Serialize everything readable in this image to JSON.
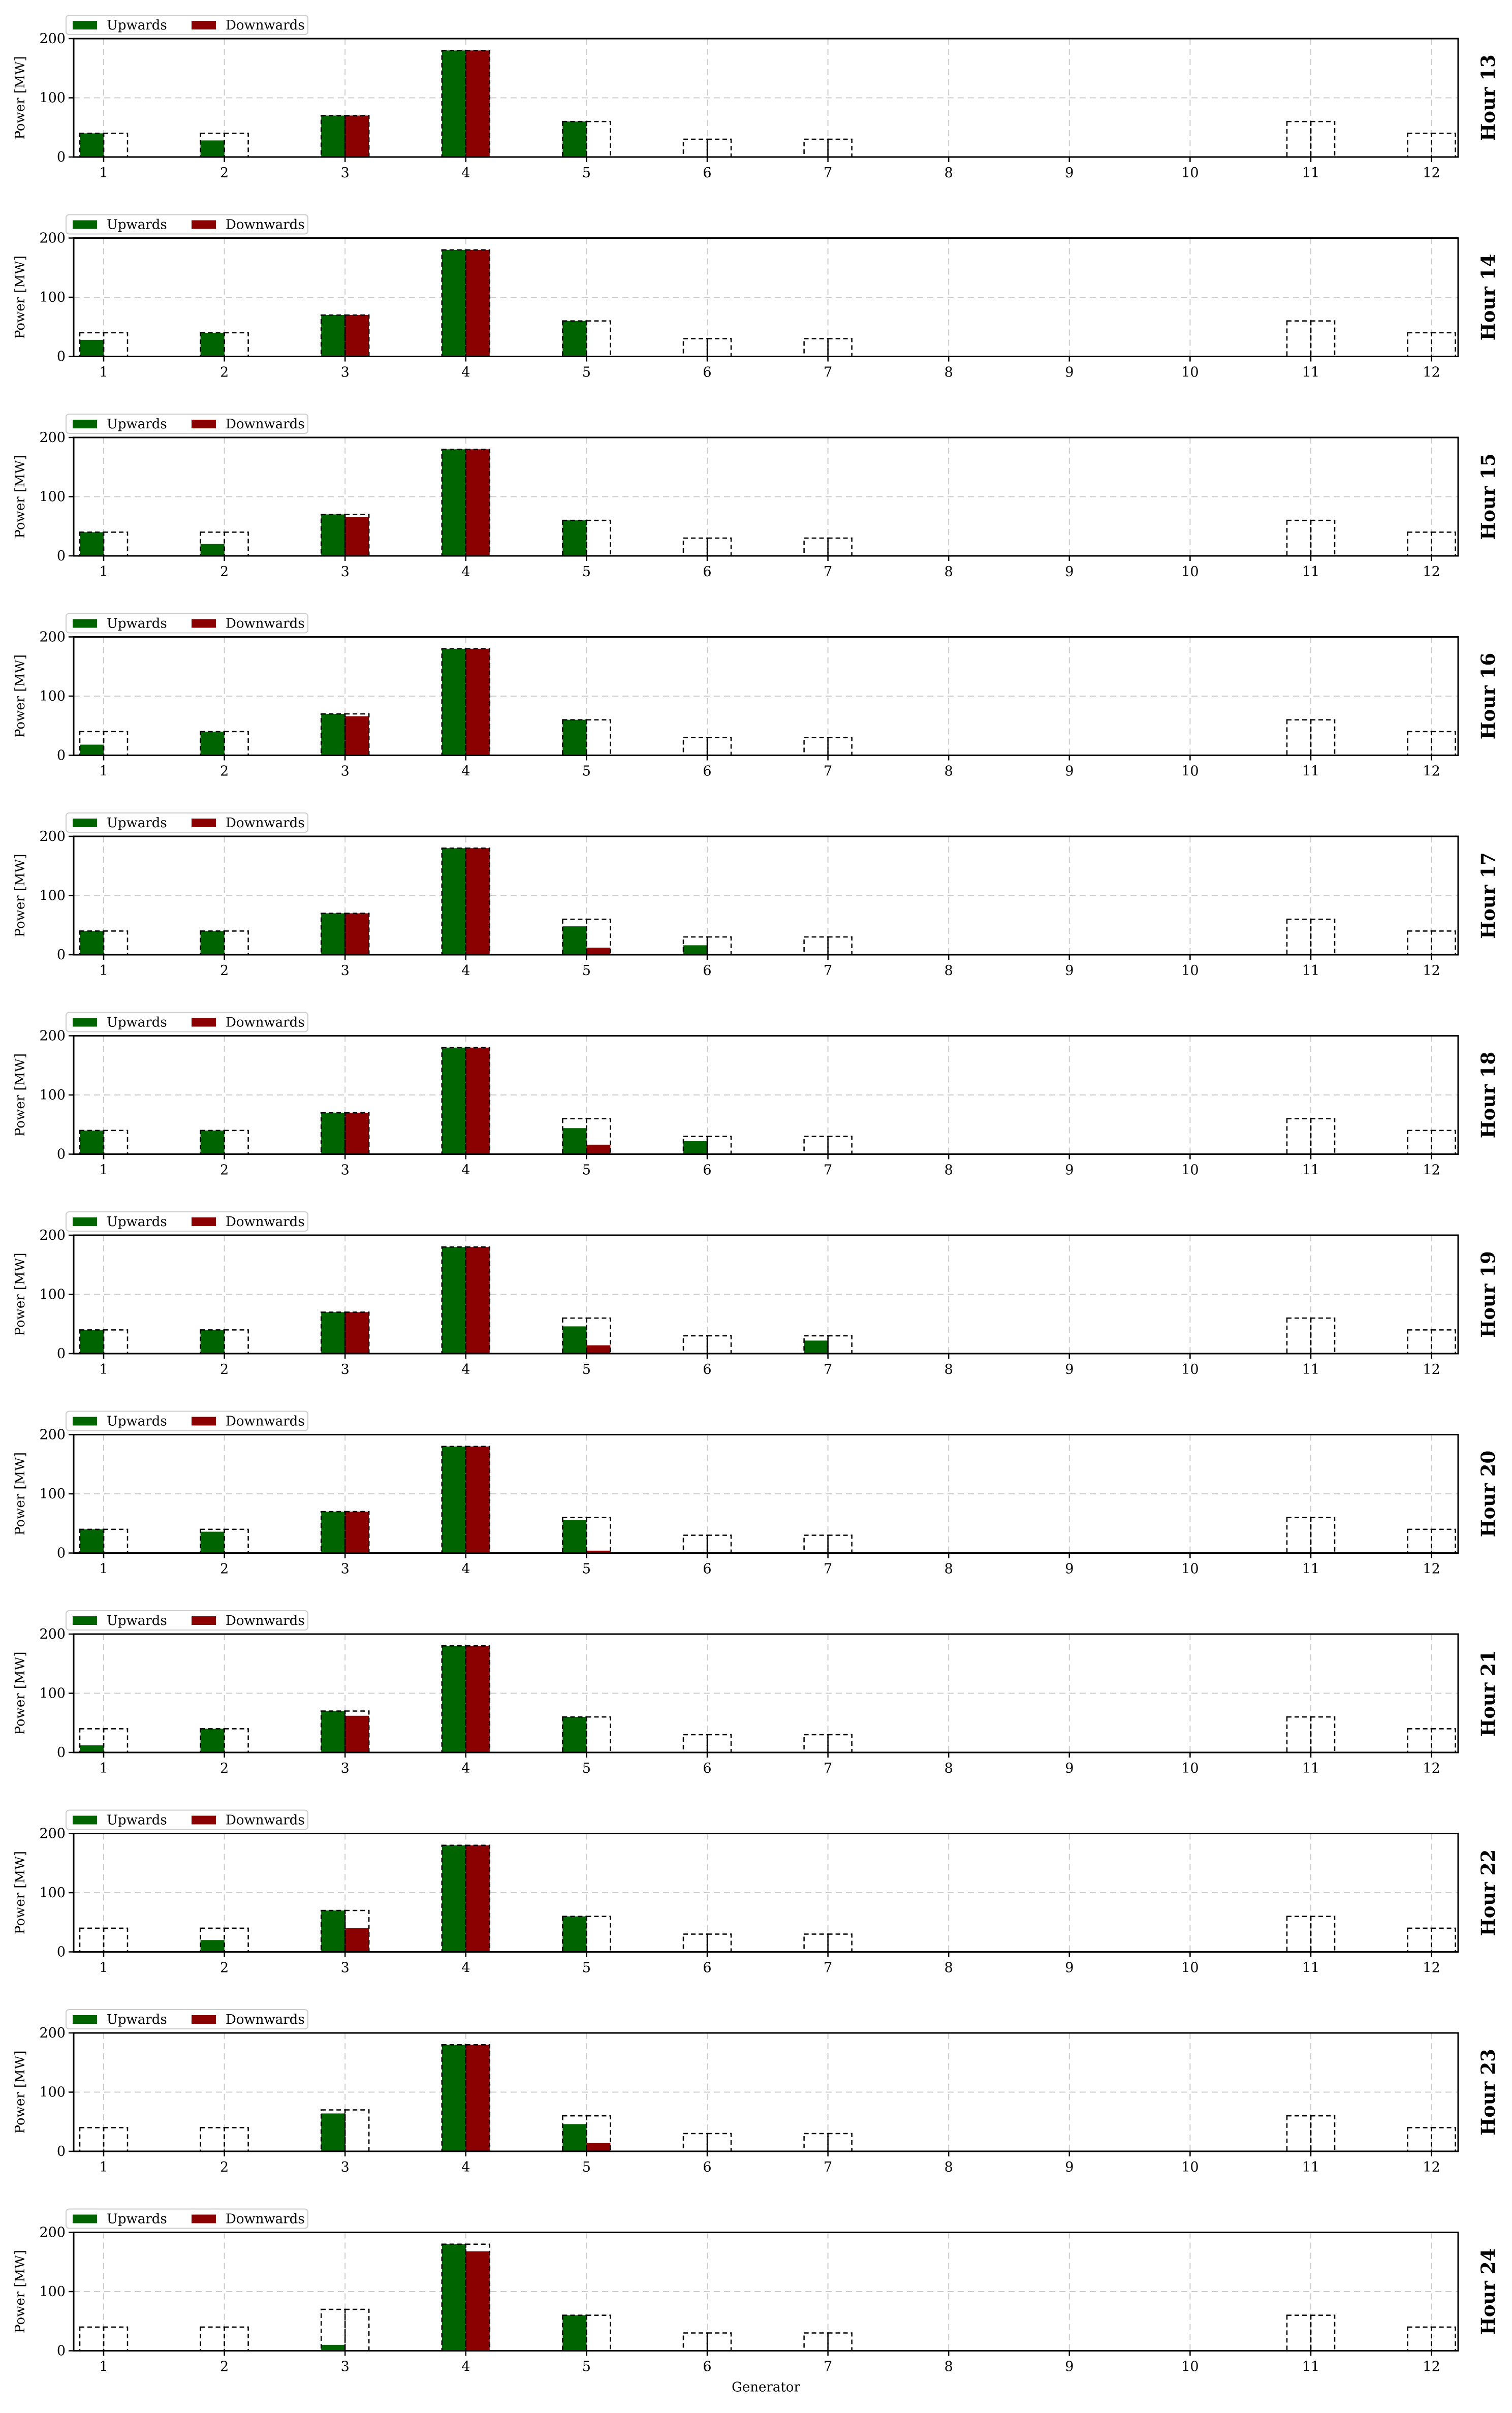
{
  "figure": {
    "xlabel": "Generator",
    "ylabel": "Power [MW]",
    "legend": {
      "items": [
        "Upwards",
        "Downwards"
      ],
      "placement": "upper-left-outside"
    },
    "colors": {
      "upwards": "#006400",
      "downwards": "#8b0000",
      "capacity_outline": "#000000",
      "grid": "#cccccc"
    }
  },
  "chart_data": [
    {
      "type": "bar",
      "title": "Hour 13",
      "xlabel": "",
      "ylabel": "Power [MW]",
      "ylim": [
        0,
        200
      ],
      "yticks": [
        0,
        100,
        200
      ],
      "grid": true,
      "categories": [
        "1",
        "2",
        "3",
        "4",
        "5",
        "6",
        "7",
        "8",
        "9",
        "10",
        "11",
        "12"
      ],
      "series": [
        {
          "name": "Upwards",
          "values": [
            40,
            28,
            70,
            180,
            60,
            0,
            0,
            0,
            0,
            0,
            0,
            0
          ]
        },
        {
          "name": "Downwards",
          "values": [
            0,
            0,
            70,
            180,
            0,
            0,
            0,
            0,
            0,
            0,
            0,
            0
          ]
        }
      ],
      "capacity": [
        40,
        40,
        70,
        180,
        60,
        30,
        30,
        0,
        0,
        0,
        60,
        40
      ]
    },
    {
      "type": "bar",
      "title": "Hour 14",
      "xlabel": "",
      "ylabel": "Power [MW]",
      "ylim": [
        0,
        200
      ],
      "yticks": [
        0,
        100,
        200
      ],
      "grid": true,
      "categories": [
        "1",
        "2",
        "3",
        "4",
        "5",
        "6",
        "7",
        "8",
        "9",
        "10",
        "11",
        "12"
      ],
      "series": [
        {
          "name": "Upwards",
          "values": [
            28,
            40,
            70,
            180,
            60,
            0,
            0,
            0,
            0,
            0,
            0,
            0
          ]
        },
        {
          "name": "Downwards",
          "values": [
            0,
            0,
            70,
            180,
            0,
            0,
            0,
            0,
            0,
            0,
            0,
            0
          ]
        }
      ],
      "capacity": [
        40,
        40,
        70,
        180,
        60,
        30,
        30,
        0,
        0,
        0,
        60,
        40
      ]
    },
    {
      "type": "bar",
      "title": "Hour 15",
      "xlabel": "",
      "ylabel": "Power [MW]",
      "ylim": [
        0,
        200
      ],
      "yticks": [
        0,
        100,
        200
      ],
      "grid": true,
      "categories": [
        "1",
        "2",
        "3",
        "4",
        "5",
        "6",
        "7",
        "8",
        "9",
        "10",
        "11",
        "12"
      ],
      "series": [
        {
          "name": "Upwards",
          "values": [
            40,
            20,
            70,
            180,
            60,
            0,
            0,
            0,
            0,
            0,
            0,
            0
          ]
        },
        {
          "name": "Downwards",
          "values": [
            0,
            0,
            66,
            180,
            0,
            0,
            0,
            0,
            0,
            0,
            0,
            0
          ]
        }
      ],
      "capacity": [
        40,
        40,
        70,
        180,
        60,
        30,
        30,
        0,
        0,
        0,
        60,
        40
      ]
    },
    {
      "type": "bar",
      "title": "Hour 16",
      "xlabel": "",
      "ylabel": "Power [MW]",
      "ylim": [
        0,
        200
      ],
      "yticks": [
        0,
        100,
        200
      ],
      "grid": true,
      "categories": [
        "1",
        "2",
        "3",
        "4",
        "5",
        "6",
        "7",
        "8",
        "9",
        "10",
        "11",
        "12"
      ],
      "series": [
        {
          "name": "Upwards",
          "values": [
            18,
            40,
            70,
            180,
            60,
            0,
            0,
            0,
            0,
            0,
            0,
            0
          ]
        },
        {
          "name": "Downwards",
          "values": [
            0,
            0,
            66,
            180,
            0,
            0,
            0,
            0,
            0,
            0,
            0,
            0
          ]
        }
      ],
      "capacity": [
        40,
        40,
        70,
        180,
        60,
        30,
        30,
        0,
        0,
        0,
        60,
        40
      ]
    },
    {
      "type": "bar",
      "title": "Hour 17",
      "xlabel": "",
      "ylabel": "Power [MW]",
      "ylim": [
        0,
        200
      ],
      "yticks": [
        0,
        100,
        200
      ],
      "grid": true,
      "categories": [
        "1",
        "2",
        "3",
        "4",
        "5",
        "6",
        "7",
        "8",
        "9",
        "10",
        "11",
        "12"
      ],
      "series": [
        {
          "name": "Upwards",
          "values": [
            40,
            40,
            70,
            180,
            48,
            16,
            0,
            0,
            0,
            0,
            0,
            0
          ]
        },
        {
          "name": "Downwards",
          "values": [
            0,
            0,
            70,
            180,
            12,
            0,
            0,
            0,
            0,
            0,
            0,
            0
          ]
        }
      ],
      "capacity": [
        40,
        40,
        70,
        180,
        60,
        30,
        30,
        0,
        0,
        0,
        60,
        40
      ]
    },
    {
      "type": "bar",
      "title": "Hour 18",
      "xlabel": "",
      "ylabel": "Power [MW]",
      "ylim": [
        0,
        200
      ],
      "yticks": [
        0,
        100,
        200
      ],
      "grid": true,
      "categories": [
        "1",
        "2",
        "3",
        "4",
        "5",
        "6",
        "7",
        "8",
        "9",
        "10",
        "11",
        "12"
      ],
      "series": [
        {
          "name": "Upwards",
          "values": [
            40,
            40,
            70,
            180,
            44,
            22,
            0,
            0,
            0,
            0,
            0,
            0
          ]
        },
        {
          "name": "Downwards",
          "values": [
            0,
            0,
            70,
            180,
            16,
            0,
            0,
            0,
            0,
            0,
            0,
            0
          ]
        }
      ],
      "capacity": [
        40,
        40,
        70,
        180,
        60,
        30,
        30,
        0,
        0,
        0,
        60,
        40
      ]
    },
    {
      "type": "bar",
      "title": "Hour 19",
      "xlabel": "",
      "ylabel": "Power [MW]",
      "ylim": [
        0,
        200
      ],
      "yticks": [
        0,
        100,
        200
      ],
      "grid": true,
      "categories": [
        "1",
        "2",
        "3",
        "4",
        "5",
        "6",
        "7",
        "8",
        "9",
        "10",
        "11",
        "12"
      ],
      "series": [
        {
          "name": "Upwards",
          "values": [
            40,
            40,
            70,
            180,
            46,
            0,
            22,
            0,
            0,
            0,
            0,
            0
          ]
        },
        {
          "name": "Downwards",
          "values": [
            0,
            0,
            70,
            180,
            14,
            0,
            0,
            0,
            0,
            0,
            0,
            0
          ]
        }
      ],
      "capacity": [
        40,
        40,
        70,
        180,
        60,
        30,
        30,
        0,
        0,
        0,
        60,
        40
      ]
    },
    {
      "type": "bar",
      "title": "Hour 20",
      "xlabel": "",
      "ylabel": "Power [MW]",
      "ylim": [
        0,
        200
      ],
      "yticks": [
        0,
        100,
        200
      ],
      "grid": true,
      "categories": [
        "1",
        "2",
        "3",
        "4",
        "5",
        "6",
        "7",
        "8",
        "9",
        "10",
        "11",
        "12"
      ],
      "series": [
        {
          "name": "Upwards",
          "values": [
            40,
            36,
            70,
            180,
            56,
            0,
            0,
            0,
            0,
            0,
            0,
            0
          ]
        },
        {
          "name": "Downwards",
          "values": [
            0,
            0,
            70,
            180,
            4,
            0,
            0,
            0,
            0,
            0,
            0,
            0
          ]
        }
      ],
      "capacity": [
        40,
        40,
        70,
        180,
        60,
        30,
        30,
        0,
        0,
        0,
        60,
        40
      ]
    },
    {
      "type": "bar",
      "title": "Hour 21",
      "xlabel": "",
      "ylabel": "Power [MW]",
      "ylim": [
        0,
        200
      ],
      "yticks": [
        0,
        100,
        200
      ],
      "grid": true,
      "categories": [
        "1",
        "2",
        "3",
        "4",
        "5",
        "6",
        "7",
        "8",
        "9",
        "10",
        "11",
        "12"
      ],
      "series": [
        {
          "name": "Upwards",
          "values": [
            12,
            40,
            70,
            180,
            60,
            0,
            0,
            0,
            0,
            0,
            0,
            0
          ]
        },
        {
          "name": "Downwards",
          "values": [
            0,
            0,
            62,
            180,
            0,
            0,
            0,
            0,
            0,
            0,
            0,
            0
          ]
        }
      ],
      "capacity": [
        40,
        40,
        70,
        180,
        60,
        30,
        30,
        0,
        0,
        0,
        60,
        40
      ]
    },
    {
      "type": "bar",
      "title": "Hour 22",
      "xlabel": "",
      "ylabel": "Power [MW]",
      "ylim": [
        0,
        200
      ],
      "yticks": [
        0,
        100,
        200
      ],
      "grid": true,
      "categories": [
        "1",
        "2",
        "3",
        "4",
        "5",
        "6",
        "7",
        "8",
        "9",
        "10",
        "11",
        "12"
      ],
      "series": [
        {
          "name": "Upwards",
          "values": [
            0,
            20,
            70,
            180,
            60,
            0,
            0,
            0,
            0,
            0,
            0,
            0
          ]
        },
        {
          "name": "Downwards",
          "values": [
            0,
            0,
            40,
            180,
            0,
            0,
            0,
            0,
            0,
            0,
            0,
            0
          ]
        }
      ],
      "capacity": [
        40,
        40,
        70,
        180,
        60,
        30,
        30,
        0,
        0,
        0,
        60,
        40
      ]
    },
    {
      "type": "bar",
      "title": "Hour 23",
      "xlabel": "",
      "ylabel": "Power [MW]",
      "ylim": [
        0,
        200
      ],
      "yticks": [
        0,
        100,
        200
      ],
      "grid": true,
      "categories": [
        "1",
        "2",
        "3",
        "4",
        "5",
        "6",
        "7",
        "8",
        "9",
        "10",
        "11",
        "12"
      ],
      "series": [
        {
          "name": "Upwards",
          "values": [
            0,
            0,
            64,
            180,
            46,
            0,
            0,
            0,
            0,
            0,
            0,
            0
          ]
        },
        {
          "name": "Downwards",
          "values": [
            0,
            0,
            0,
            180,
            14,
            0,
            0,
            0,
            0,
            0,
            0,
            0
          ]
        }
      ],
      "capacity": [
        40,
        40,
        70,
        180,
        60,
        30,
        30,
        0,
        0,
        0,
        60,
        40
      ]
    },
    {
      "type": "bar",
      "title": "Hour 24",
      "xlabel": "Generator",
      "ylabel": "Power [MW]",
      "ylim": [
        0,
        200
      ],
      "yticks": [
        0,
        100,
        200
      ],
      "grid": true,
      "categories": [
        "1",
        "2",
        "3",
        "4",
        "5",
        "6",
        "7",
        "8",
        "9",
        "10",
        "11",
        "12"
      ],
      "series": [
        {
          "name": "Upwards",
          "values": [
            0,
            0,
            10,
            180,
            60,
            0,
            0,
            0,
            0,
            0,
            0,
            0
          ]
        },
        {
          "name": "Downwards",
          "values": [
            0,
            0,
            0,
            168,
            0,
            0,
            0,
            0,
            0,
            0,
            0,
            0
          ]
        }
      ],
      "capacity": [
        40,
        40,
        70,
        180,
        60,
        30,
        30,
        0,
        0,
        0,
        60,
        40
      ]
    }
  ]
}
